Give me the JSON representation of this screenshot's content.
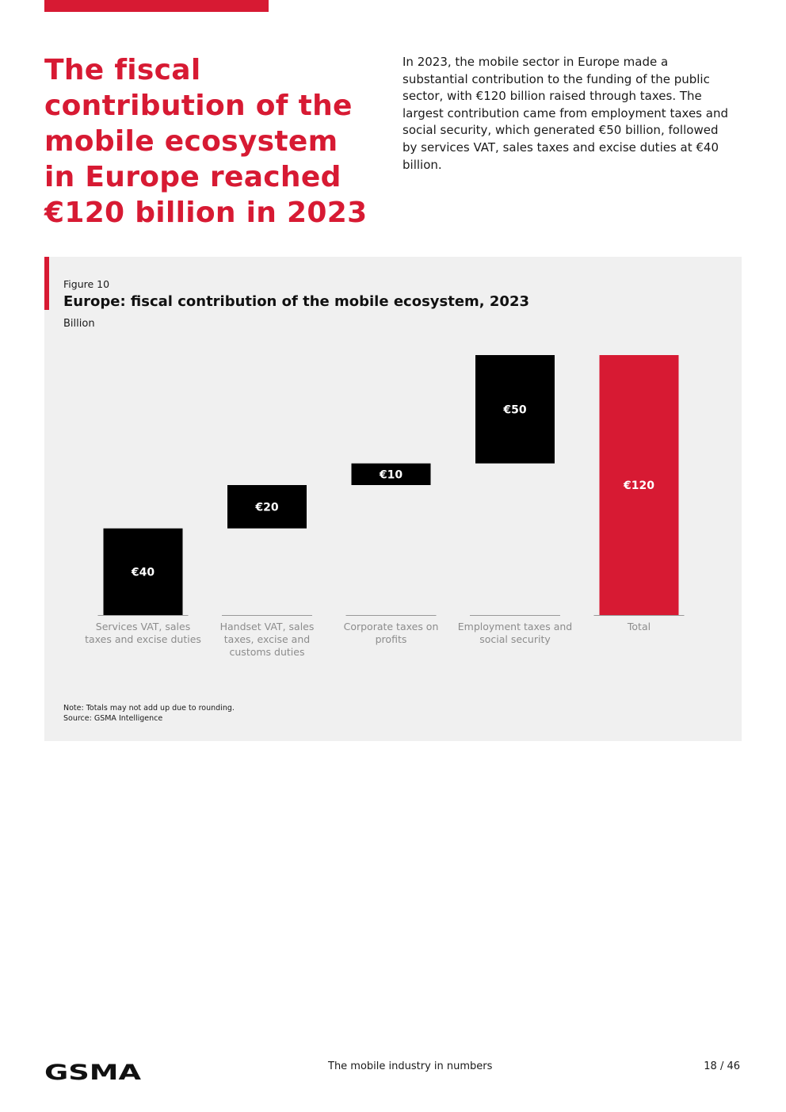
{
  "headline": "The fiscal contribution of the mobile ecosystem in Europe reached €120 billion in 2023",
  "intro": "In 2023, the mobile sector in Europe made a substantial contribution to the funding of the public sector, with €120 billion raised through taxes. The largest contribution came from employment taxes and social security, which generated €50 billion, followed by services VAT, sales taxes and excise duties at €40 billion.",
  "figure": {
    "label": "Figure 10",
    "title": "Europe: fiscal contribution of the mobile ecosystem, 2023",
    "unit": "Billion",
    "note": "Note: Totals may not add up due to rounding.",
    "source": "Source: GSMA Intelligence"
  },
  "chart_data": {
    "type": "bar",
    "subtype": "waterfall",
    "title": "Europe: fiscal contribution of the mobile ecosystem, 2023",
    "ylabel": "Billion",
    "categories": [
      "Services VAT, sales taxes and excise duties",
      "Handset VAT, sales taxes, excise and customs duties",
      "Corporate taxes on profits",
      "Employment taxes and social security",
      "Total"
    ],
    "values": [
      40,
      20,
      10,
      50,
      120
    ],
    "data_labels": [
      "€40",
      "€20",
      "€10",
      "€50",
      "€120"
    ],
    "ylim": [
      0,
      120
    ],
    "grid": false,
    "colors": {
      "component": "#000000",
      "total": "#d71a33",
      "baseline": "#999999"
    }
  },
  "footer": {
    "logo_text": "GSMA",
    "center": "The mobile industry in numbers",
    "page": "18 / 46"
  },
  "colors": {
    "accent": "#d71a33",
    "panel": "#f0f0f0"
  }
}
